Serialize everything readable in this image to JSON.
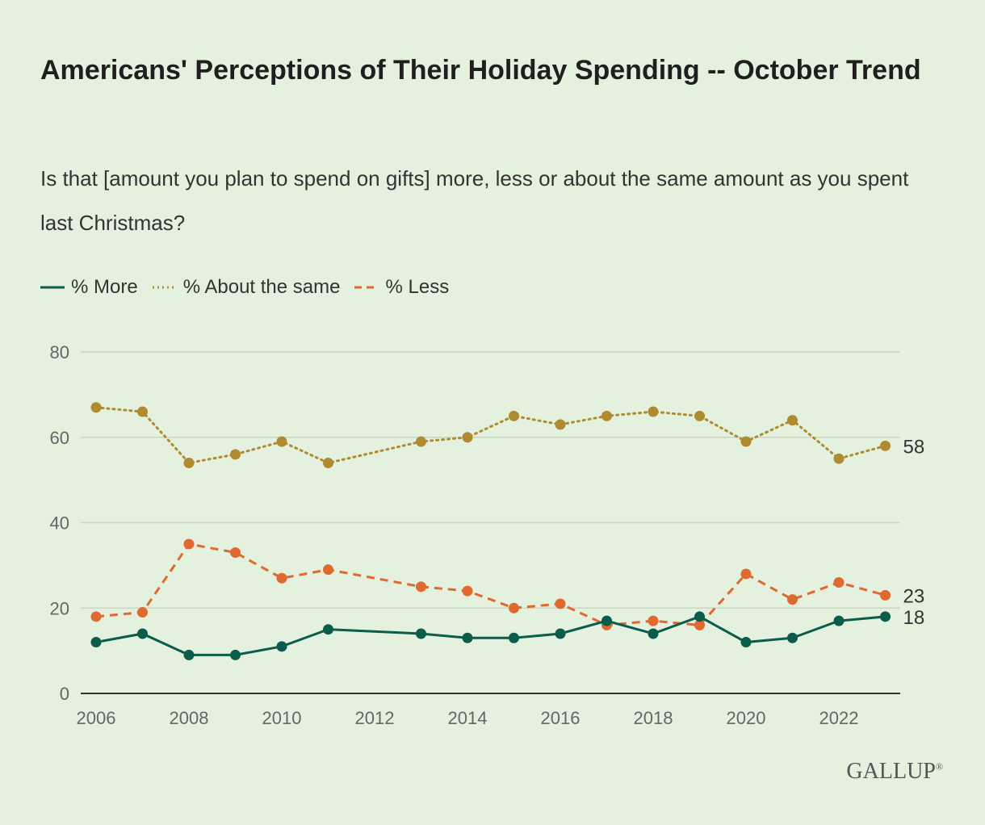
{
  "title": "Americans' Perceptions of Their Holiday Spending -- October Trend",
  "subtitle": "Is that [amount you plan to spend on gifts] more, less or about the same amount as you spent last Christmas?",
  "logo": "GALLUP",
  "logo_mark": "®",
  "chart_data": {
    "type": "line",
    "title": "Americans' Perceptions of Their Holiday Spending -- October Trend",
    "xlabel": "",
    "ylabel": "",
    "ylim": [
      0,
      80
    ],
    "xlim": [
      2006,
      2023
    ],
    "yticks": [
      0,
      20,
      40,
      60,
      80
    ],
    "xticks": [
      2006,
      2008,
      2010,
      2012,
      2014,
      2016,
      2018,
      2020,
      2022
    ],
    "grid": true,
    "legend_position": "top-left",
    "x": [
      2006,
      2007,
      2008,
      2009,
      2010,
      2011,
      2013,
      2014,
      2015,
      2016,
      2017,
      2018,
      2019,
      2020,
      2021,
      2022,
      2023
    ],
    "series": [
      {
        "name": "% More",
        "color": "#0b5c4b",
        "dash": "solid",
        "end_label": "18",
        "values": [
          12,
          14,
          9,
          9,
          11,
          15,
          14,
          13,
          13,
          14,
          17,
          14,
          18,
          12,
          13,
          17,
          18
        ]
      },
      {
        "name": "% About the same",
        "color": "#b08a2e",
        "dash": "dotted",
        "end_label": "58",
        "values": [
          67,
          66,
          54,
          56,
          59,
          54,
          59,
          60,
          65,
          63,
          65,
          66,
          65,
          59,
          64,
          55,
          58
        ]
      },
      {
        "name": "% Less",
        "color": "#e0692f",
        "dash": "dashed",
        "end_label": "23",
        "values": [
          18,
          19,
          35,
          33,
          27,
          29,
          25,
          24,
          20,
          21,
          16,
          17,
          16,
          28,
          22,
          26,
          23
        ]
      }
    ]
  }
}
